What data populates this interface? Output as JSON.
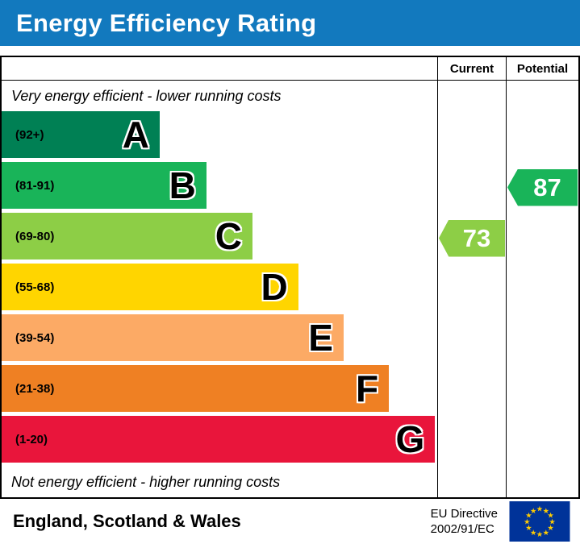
{
  "title": "Energy Efficiency Rating",
  "title_bar_color": "#1279be",
  "table": {
    "col_current": "Current",
    "col_potential": "Potential",
    "top_note": "Very energy efficient - lower running costs",
    "bottom_note": "Not energy efficient - higher running costs"
  },
  "chart_data": {
    "type": "bar",
    "title": "Energy Efficiency Rating",
    "orientation": "horizontal",
    "bands": [
      {
        "letter": "A",
        "range": "(92+)",
        "color": "#008054",
        "width_pct": 36.3
      },
      {
        "letter": "B",
        "range": "(81-91)",
        "color": "#19b459",
        "width_pct": 47.0
      },
      {
        "letter": "C",
        "range": "(69-80)",
        "color": "#8dce46",
        "width_pct": 57.6
      },
      {
        "letter": "D",
        "range": "(55-68)",
        "color": "#ffd500",
        "width_pct": 68.1
      },
      {
        "letter": "E",
        "range": "(39-54)",
        "color": "#fcaa65",
        "width_pct": 78.5
      },
      {
        "letter": "F",
        "range": "(21-38)",
        "color": "#ef8023",
        "width_pct": 88.9
      },
      {
        "letter": "G",
        "range": "(1-20)",
        "color": "#e9153b",
        "width_pct": 99.5
      }
    ],
    "current": {
      "label": "Current",
      "value": 73,
      "band": "C",
      "color": "#8dce46"
    },
    "potential": {
      "label": "Potential",
      "value": 87,
      "band": "B",
      "color": "#19b459"
    },
    "annotations": [
      "Very energy efficient - lower running costs",
      "Not energy efficient - higher running costs"
    ]
  },
  "footer": {
    "region": "England, Scotland & Wales",
    "directive_line1": "EU Directive",
    "directive_line2": "2002/91/EC",
    "flag_colors": {
      "background": "#003399",
      "stars": "#ffcc00"
    }
  }
}
